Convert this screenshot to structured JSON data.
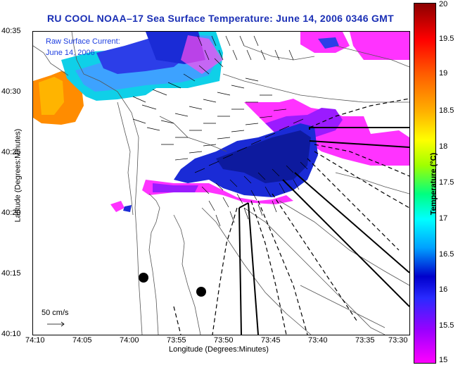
{
  "title": "RU COOL  NOAA–17  Sea Surface Temperature:  June 14, 2006 0346 GMT",
  "overlay": {
    "current_line1": "Raw Surface Current:",
    "current_line2": "June 14, 2006"
  },
  "axes": {
    "xlabel": "Longitude (Degrees:Minutes)",
    "ylabel": "Latitude (Degrees:Minutes)",
    "x_ticks": [
      "74:10",
      "74:05",
      "74:00",
      "73:55",
      "73:50",
      "73:45",
      "73:40",
      "73:35",
      "73:30"
    ],
    "y_ticks": [
      "40:35",
      "40:30",
      "40:25",
      "40:20",
      "40:15",
      "40:10"
    ]
  },
  "colorbar": {
    "title": "Temperature (°C)",
    "ticks": [
      "20",
      "19.5",
      "19",
      "18.5",
      "18",
      "17.5",
      "17",
      "16.5",
      "16",
      "15.5",
      "15"
    ]
  },
  "scale_bar": {
    "label": "50 cm/s"
  }
}
